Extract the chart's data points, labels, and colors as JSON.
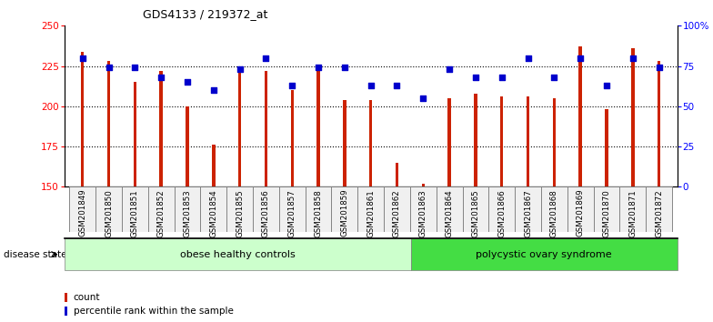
{
  "title": "GDS4133 / 219372_at",
  "samples": [
    "GSM201849",
    "GSM201850",
    "GSM201851",
    "GSM201852",
    "GSM201853",
    "GSM201854",
    "GSM201855",
    "GSM201856",
    "GSM201857",
    "GSM201858",
    "GSM201859",
    "GSM201861",
    "GSM201862",
    "GSM201863",
    "GSM201864",
    "GSM201865",
    "GSM201866",
    "GSM201867",
    "GSM201868",
    "GSM201869",
    "GSM201870",
    "GSM201871",
    "GSM201872"
  ],
  "counts": [
    234,
    228,
    215,
    222,
    200,
    176,
    222,
    222,
    210,
    222,
    204,
    204,
    165,
    152,
    205,
    208,
    206,
    206,
    205,
    237,
    198,
    236,
    228
  ],
  "percentiles": [
    80,
    74,
    74,
    68,
    65,
    60,
    73,
    80,
    63,
    74,
    74,
    63,
    63,
    55,
    73,
    68,
    68,
    80,
    68,
    80,
    63,
    80,
    74
  ],
  "group1_label": "obese healthy controls",
  "group1_count": 13,
  "group2_label": "polycystic ovary syndrome",
  "group2_count": 10,
  "ylim_left": [
    150,
    250
  ],
  "ylim_right": [
    0,
    100
  ],
  "yticks_left": [
    150,
    175,
    200,
    225,
    250
  ],
  "yticks_right": [
    0,
    25,
    50,
    75,
    100
  ],
  "yticklabels_right": [
    "0",
    "25",
    "50",
    "75",
    "100%"
  ],
  "bar_color": "#cc2200",
  "scatter_color": "#0000cc",
  "group1_color": "#ccffcc",
  "group2_color": "#44dd44",
  "bg_color": "#f0f0f0",
  "legend_count_label": "count",
  "legend_pct_label": "percentile rank within the sample",
  "disease_state_label": "disease state"
}
